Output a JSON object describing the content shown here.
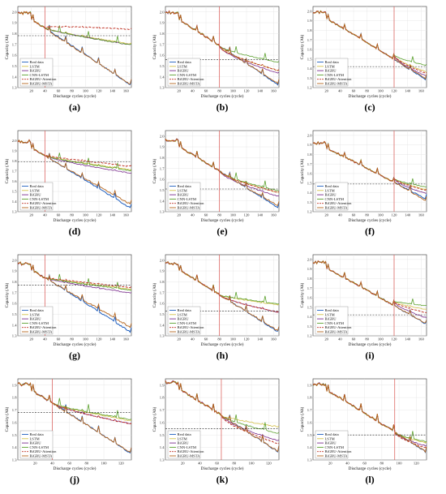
{
  "figure": {
    "common": {
      "xlabel": "Discharge cycles (cycle)",
      "ylabel": "Capacity (Ah)"
    },
    "legend_entries": [
      "Real data",
      "LSTM",
      "BiGRU",
      "CNN-LSTM",
      "BiGRU-Attention",
      "BiGRU-MSTA"
    ],
    "colors": {
      "Real data": "#1f5fbf",
      "LSTM": "#d4c14a",
      "BiGRU": "#7b2d8e",
      "CNN-LSTM": "#5aa02c",
      "BiGRU-Attention": "#c0392b",
      "BiGRU-MSTA": "#b5651d",
      "threshold": "#222222",
      "prediction_start": "#d9534f"
    }
  },
  "chart_data": [
    {
      "panel": "(a)",
      "type": "line",
      "xlim": [
        0,
        168
      ],
      "ylim": [
        1.3,
        2.05
      ],
      "xticks": [
        20,
        40,
        60,
        80,
        100,
        120,
        140,
        160
      ],
      "yticks": [
        1.3,
        1.4,
        1.5,
        1.6,
        1.7,
        1.8,
        1.9,
        2.0
      ],
      "start": 40,
      "end": 168,
      "threshold": 1.78,
      "y0": 2.0,
      "y1": 1.32,
      "pred": {
        "LSTM": 1.77,
        "BiGRU": 1.76,
        "CNN-LSTM": 1.76,
        "BiGRU-Attention": 1.93,
        "BiGRU-MSTA": 1.33
      }
    },
    {
      "panel": "(b)",
      "type": "line",
      "xlim": [
        0,
        168
      ],
      "ylim": [
        1.3,
        2.05
      ],
      "xticks": [
        20,
        40,
        60,
        80,
        100,
        120,
        140,
        160
      ],
      "yticks": [
        1.3,
        1.4,
        1.5,
        1.6,
        1.7,
        1.8,
        1.9,
        2.0
      ],
      "start": 80,
      "end": 168,
      "threshold": 1.56,
      "y0": 2.0,
      "y1": 1.32,
      "pred": {
        "LSTM": 1.48,
        "BiGRU": 1.45,
        "CNN-LSTM": 1.57,
        "BiGRU-Attention": 1.48,
        "BiGRU-MSTA": 1.34
      }
    },
    {
      "panel": "(c)",
      "type": "line",
      "xlim": [
        0,
        168
      ],
      "ylim": [
        1.2,
        2.05
      ],
      "xticks": [
        20,
        40,
        60,
        80,
        100,
        120,
        140,
        160
      ],
      "yticks": [
        1.2,
        1.3,
        1.4,
        1.5,
        1.6,
        1.7,
        1.8,
        1.9,
        2.0
      ],
      "start": 120,
      "end": 168,
      "threshold": 1.42,
      "y0": 2.0,
      "y1": 1.28,
      "pred": {
        "LSTM": 1.38,
        "BiGRU": 1.33,
        "CNN-LSTM": 1.46,
        "BiGRU-Attention": 1.36,
        "BiGRU-MSTA": 1.3
      }
    },
    {
      "panel": "(d)",
      "type": "line",
      "xlim": [
        0,
        168
      ],
      "ylim": [
        1.3,
        2.1
      ],
      "xticks": [
        20,
        40,
        60,
        80,
        100,
        120,
        140,
        160
      ],
      "yticks": [
        1.3,
        1.4,
        1.5,
        1.6,
        1.7,
        1.8,
        1.9,
        2.0
      ],
      "start": 40,
      "end": 168,
      "threshold": 1.79,
      "y0": 2.0,
      "y1": 1.33,
      "pred": {
        "LSTM": 1.78,
        "BiGRU": 1.74,
        "CNN-LSTM": 1.77,
        "BiGRU-Attention": 1.82,
        "BiGRU-MSTA": 1.4
      }
    },
    {
      "panel": "(e)",
      "type": "line",
      "xlim": [
        0,
        168
      ],
      "ylim": [
        1.3,
        2.05
      ],
      "xticks": [
        20,
        40,
        60,
        80,
        100,
        120,
        140,
        160
      ],
      "yticks": [
        1.3,
        1.4,
        1.5,
        1.6,
        1.7,
        1.8,
        1.9,
        2.0
      ],
      "start": 80,
      "end": 168,
      "threshold": 1.51,
      "y0": 1.97,
      "y1": 1.33,
      "pred": {
        "LSTM": 1.5,
        "BiGRU": 1.46,
        "CNN-LSTM": 1.52,
        "BiGRU-Attention": 1.5,
        "BiGRU-MSTA": 1.36
      }
    },
    {
      "panel": "(f)",
      "type": "line",
      "xlim": [
        0,
        168
      ],
      "ylim": [
        1.2,
        2.05
      ],
      "xticks": [
        20,
        40,
        60,
        80,
        100,
        120,
        140,
        160
      ],
      "yticks": [
        1.2,
        1.3,
        1.4,
        1.5,
        1.6,
        1.7,
        1.8,
        1.9,
        2.0
      ],
      "start": 120,
      "end": 168,
      "threshold": 1.49,
      "y0": 1.93,
      "y1": 1.33,
      "pred": {
        "LSTM": 1.45,
        "BiGRU": 1.4,
        "CNN-LSTM": 1.48,
        "BiGRU-Attention": 1.44,
        "BiGRU-MSTA": 1.3
      }
    },
    {
      "panel": "(g)",
      "type": "line",
      "xlim": [
        0,
        168
      ],
      "ylim": [
        1.3,
        2.05
      ],
      "xticks": [
        20,
        40,
        60,
        80,
        100,
        120,
        140,
        160
      ],
      "yticks": [
        1.3,
        1.4,
        1.5,
        1.6,
        1.7,
        1.8,
        1.9,
        2.0
      ],
      "start": 40,
      "end": 168,
      "threshold": 1.77,
      "y0": 1.98,
      "y1": 1.33,
      "pred": {
        "LSTM": 1.8,
        "BiGRU": 1.76,
        "CNN-LSTM": 1.79,
        "BiGRU-Attention": 1.82,
        "BiGRU-MSTA": 1.41
      }
    },
    {
      "panel": "(h)",
      "type": "line",
      "xlim": [
        0,
        168
      ],
      "ylim": [
        1.3,
        2.05
      ],
      "xticks": [
        20,
        40,
        60,
        80,
        100,
        120,
        140,
        160
      ],
      "yticks": [
        1.3,
        1.4,
        1.5,
        1.6,
        1.7,
        1.8,
        1.9,
        2.0
      ],
      "start": 80,
      "end": 168,
      "threshold": 1.53,
      "y0": 1.98,
      "y1": 1.33,
      "pred": {
        "LSTM": 1.63,
        "BiGRU": 1.55,
        "CNN-LSTM": 1.64,
        "BiGRU-Attention": 1.55,
        "BiGRU-MSTA": 1.35
      }
    },
    {
      "panel": "(i)",
      "type": "line",
      "xlim": [
        0,
        168
      ],
      "ylim": [
        1.2,
        2.05
      ],
      "xticks": [
        20,
        40,
        60,
        80,
        100,
        120,
        140,
        160
      ],
      "yticks": [
        1.2,
        1.3,
        1.4,
        1.5,
        1.6,
        1.7,
        1.8,
        1.9,
        2.0
      ],
      "start": 120,
      "end": 168,
      "threshold": 1.42,
      "y0": 1.98,
      "y1": 1.32,
      "pred": {
        "LSTM": 1.5,
        "BiGRU": 1.4,
        "CNN-LSTM": 1.55,
        "BiGRU-Attention": 1.46,
        "BiGRU-MSTA": 1.33
      }
    },
    {
      "panel": "(j)",
      "type": "line",
      "xlim": [
        0,
        132
      ],
      "ylim": [
        1.3,
        1.95
      ],
      "xticks": [
        20,
        40,
        60,
        80,
        100,
        120
      ],
      "yticks": [
        1.3,
        1.4,
        1.5,
        1.6,
        1.7,
        1.8,
        1.9
      ],
      "start": 40,
      "end": 132,
      "threshold": 1.68,
      "y0": 1.92,
      "y1": 1.35,
      "pred": {
        "LSTM": 1.66,
        "BiGRU": 1.63,
        "CNN-LSTM": 1.67,
        "BiGRU-Attention": 1.63,
        "BiGRU-MSTA": 1.36
      }
    },
    {
      "panel": "(k)",
      "type": "line",
      "xlim": [
        0,
        132
      ],
      "ylim": [
        1.3,
        1.95
      ],
      "xticks": [
        20,
        40,
        60,
        80,
        100,
        120
      ],
      "yticks": [
        1.3,
        1.4,
        1.5,
        1.6,
        1.7,
        1.8,
        1.9
      ],
      "start": 65,
      "end": 132,
      "threshold": 1.55,
      "y0": 1.93,
      "y1": 1.36,
      "pred": {
        "LSTM": 1.6,
        "BiGRU": 1.47,
        "CNN-LSTM": 1.54,
        "BiGRU-Attention": 1.44,
        "BiGRU-MSTA": 1.37
      }
    },
    {
      "panel": "(l)",
      "type": "line",
      "xlim": [
        0,
        132
      ],
      "ylim": [
        1.3,
        1.95
      ],
      "xticks": [
        20,
        40,
        60,
        80,
        100,
        120
      ],
      "yticks": [
        1.3,
        1.4,
        1.5,
        1.6,
        1.7,
        1.8,
        1.9
      ],
      "start": 95,
      "end": 132,
      "threshold": 1.5,
      "y0": 1.92,
      "y1": 1.36,
      "pred": {
        "LSTM": 1.45,
        "BiGRU": 1.42,
        "CNN-LSTM": 1.46,
        "BiGRU-Attention": 1.4,
        "BiGRU-MSTA": 1.37
      }
    }
  ]
}
